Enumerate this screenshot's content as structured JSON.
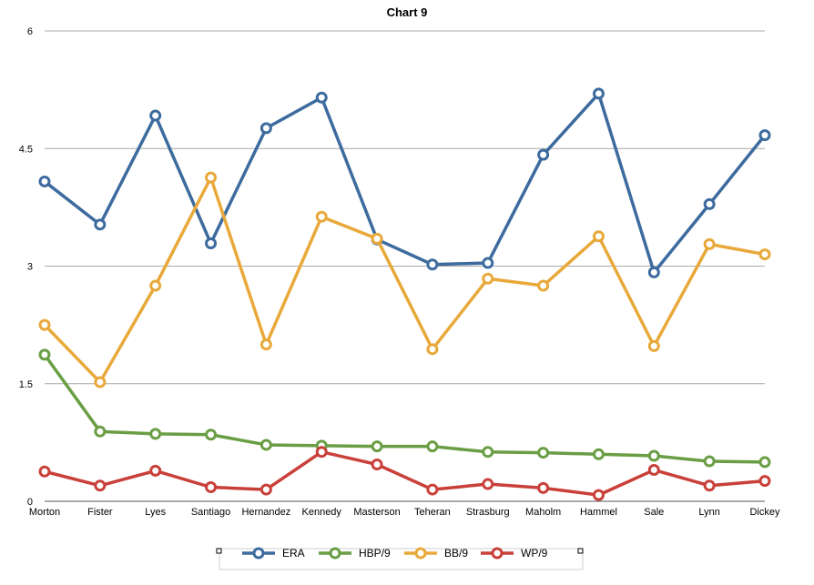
{
  "chart_data": {
    "type": "line",
    "title": "Chart 9",
    "xlabel": "",
    "ylabel": "",
    "categories": [
      "Morton",
      "Fister",
      "Lyes",
      "Santiago",
      "Hernandez",
      "Kennedy",
      "Masterson",
      "Teheran",
      "Strasburg",
      "Maholm",
      "Hammel",
      "Sale",
      "Lynn",
      "Dickey"
    ],
    "ylim": [
      0,
      6
    ],
    "yticks": [
      "0",
      "1.5",
      "3",
      "4.5",
      "6"
    ],
    "grid": true,
    "legend_position": "bottom",
    "series": [
      {
        "name": "ERA",
        "color": "#3d6b9e",
        "values": [
          4.08,
          3.53,
          4.92,
          3.29,
          4.76,
          5.15,
          3.34,
          3.02,
          3.04,
          4.42,
          5.2,
          2.92,
          3.79,
          4.67
        ]
      },
      {
        "name": "HBP/9",
        "color": "#6a9e45",
        "values": [
          1.87,
          0.89,
          0.86,
          0.85,
          0.72,
          0.71,
          0.7,
          0.7,
          0.63,
          0.62,
          0.6,
          0.58,
          0.51,
          0.5
        ]
      },
      {
        "name": "BB/9",
        "color": "#e8a93a",
        "values": [
          2.25,
          1.52,
          2.75,
          4.13,
          2.0,
          3.63,
          3.35,
          1.94,
          2.84,
          2.75,
          3.38,
          1.98,
          3.28,
          3.15
        ]
      },
      {
        "name": "WP/9",
        "color": "#c9403a",
        "values": [
          0.38,
          0.2,
          0.39,
          0.18,
          0.15,
          0.63,
          0.47,
          0.15,
          0.22,
          0.17,
          0.08,
          0.4,
          0.2,
          0.26
        ]
      }
    ]
  }
}
